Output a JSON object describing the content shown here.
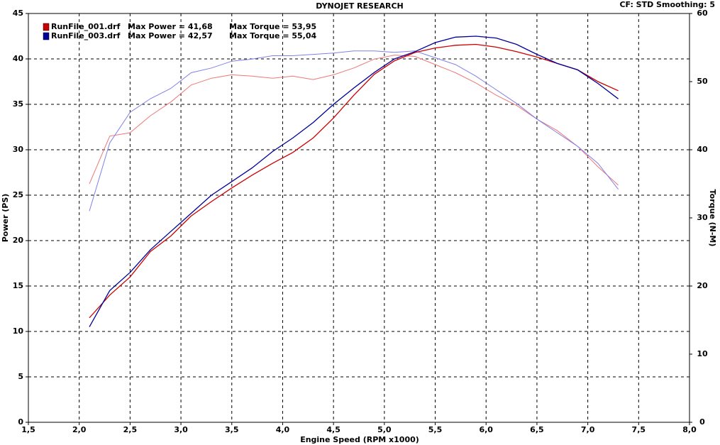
{
  "chart_data": {
    "type": "line",
    "title": "DYNOJET RESEARCH",
    "settings_text": "CF: STD  Smoothing: 5",
    "x_label": "Engine Speed (RPM x1000)",
    "y_label": "Power (PS)",
    "y2_label": "Torque (N-M)",
    "grid": true,
    "x": [
      2.1,
      2.3,
      2.5,
      2.7,
      2.9,
      3.1,
      3.3,
      3.5,
      3.7,
      3.9,
      4.1,
      4.3,
      4.5,
      4.7,
      4.9,
      5.1,
      5.3,
      5.5,
      5.7,
      5.9,
      6.1,
      6.3,
      6.5,
      6.7,
      6.9,
      7.1,
      7.3
    ],
    "xlim": [
      1.5,
      8.0
    ],
    "xticks": [
      {
        "value": 1.5,
        "label": "1,5"
      },
      {
        "value": 2.0,
        "label": "2,0"
      },
      {
        "value": 2.5,
        "label": "2,5"
      },
      {
        "value": 3.0,
        "label": "3,0"
      },
      {
        "value": 3.5,
        "label": "3,5"
      },
      {
        "value": 4.0,
        "label": "4,0"
      },
      {
        "value": 4.5,
        "label": "4,5"
      },
      {
        "value": 5.0,
        "label": "5,0"
      },
      {
        "value": 5.5,
        "label": "5,5"
      },
      {
        "value": 6.0,
        "label": "6,0"
      },
      {
        "value": 6.5,
        "label": "6,5"
      },
      {
        "value": 7.0,
        "label": "7,0"
      },
      {
        "value": 7.5,
        "label": "7,5"
      },
      {
        "value": 8.0,
        "label": "8,0"
      }
    ],
    "ylim": [
      0,
      45
    ],
    "yticks": [
      0,
      5,
      10,
      15,
      20,
      25,
      30,
      35,
      40,
      45
    ],
    "y2lim": [
      0,
      60
    ],
    "y2ticks": [
      0,
      10,
      20,
      30,
      40,
      50,
      60
    ],
    "series": [
      {
        "name": "RunFile_001.drf",
        "color": "#cc0000",
        "torque_color": "#ee7777",
        "max_power_label": "Max Power = 41,68",
        "max_torque_label": "Max Torque = 53,95",
        "power": [
          11.5,
          14,
          16,
          18.8,
          20.5,
          22.7,
          24.3,
          25.8,
          27.2,
          28.5,
          29.7,
          31.3,
          33.5,
          36,
          38.3,
          39.8,
          40.7,
          41.2,
          41.5,
          41.6,
          41.3,
          40.8,
          40.2,
          39.5,
          38.8,
          37.5,
          36.5
        ],
        "torque": [
          35,
          42,
          42.5,
          45,
          47,
          49.5,
          50.5,
          51,
          50.8,
          50.5,
          50.8,
          50.3,
          51,
          52,
          53.3,
          53.9,
          53.7,
          52.5,
          51.3,
          49.8,
          48,
          46.5,
          44.5,
          42.8,
          40.5,
          37.5,
          34.8
        ]
      },
      {
        "name": "RunFile_003.drf",
        "color": "#000099",
        "torque_color": "#8080e8",
        "max_power_label": "Max Power = 42,57",
        "max_torque_label": "Max Torque = 55,04",
        "power": [
          10.5,
          14.5,
          16.5,
          19,
          21,
          23,
          25,
          26.5,
          28,
          29.8,
          31.3,
          33,
          35,
          36.8,
          38.5,
          40,
          40.8,
          41.8,
          42.4,
          42.5,
          42.3,
          41.6,
          40.5,
          39.5,
          38.8,
          37.3,
          35.6
        ],
        "torque": [
          31,
          41,
          45.5,
          47.5,
          49,
          51.3,
          52,
          53,
          53.3,
          53.8,
          53.8,
          54,
          54.2,
          54.5,
          54.5,
          54.3,
          54.5,
          53.5,
          52.5,
          50.8,
          48.8,
          46.8,
          44.5,
          42.5,
          40.5,
          38,
          34.2
        ]
      }
    ]
  }
}
